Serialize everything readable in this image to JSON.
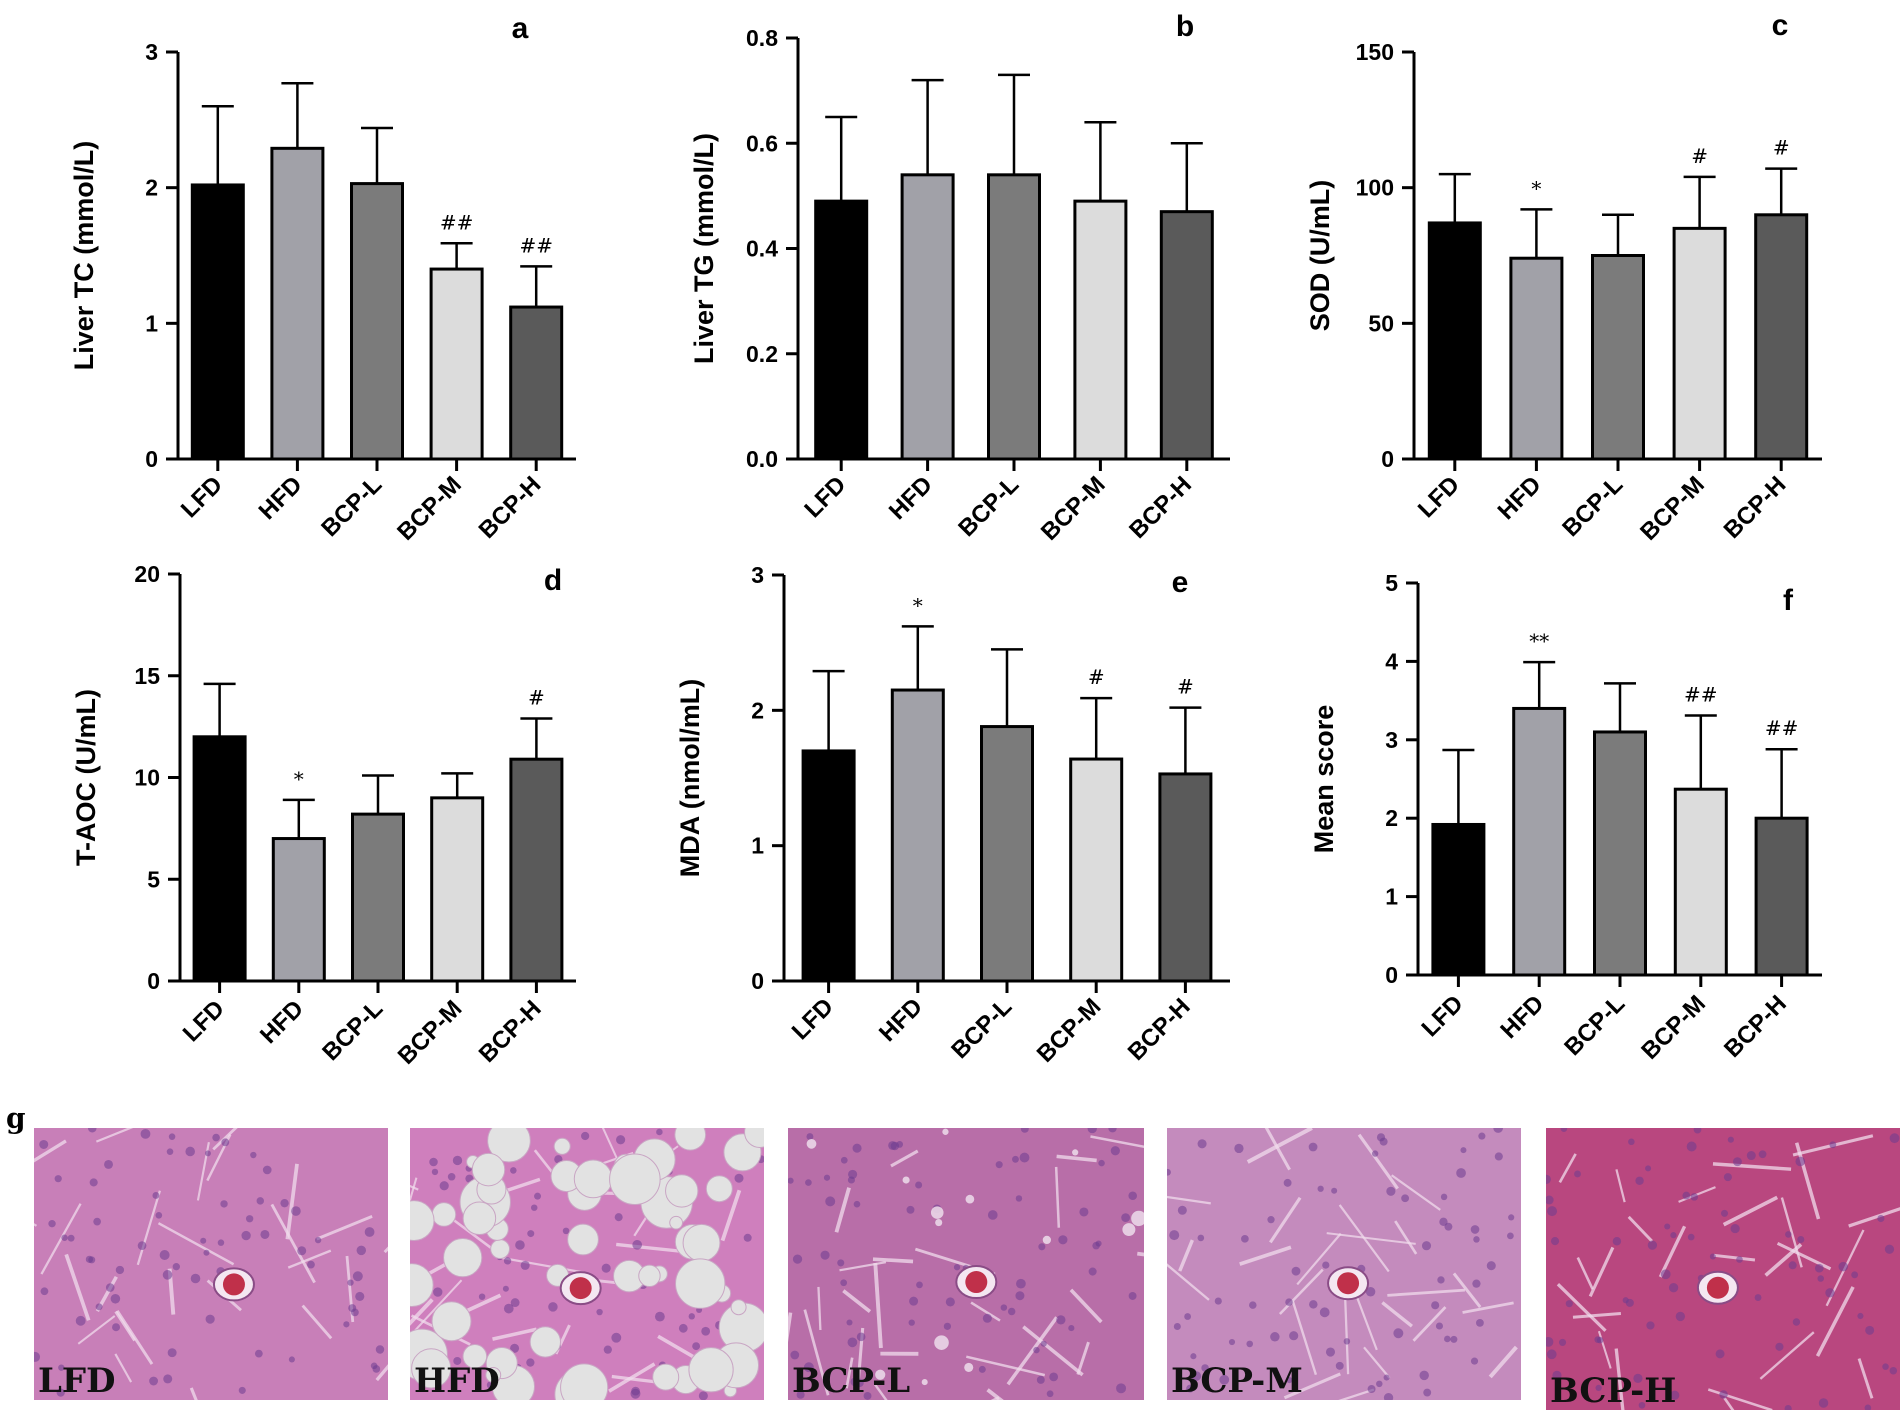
{
  "chart_data": [
    {
      "panel": "a",
      "type": "bar",
      "categories": [
        "LFD",
        "HFD",
        "BCP-L",
        "BCP-M",
        "BCP-H"
      ],
      "values": [
        2.02,
        2.29,
        2.03,
        1.4,
        1.12
      ],
      "errors": [
        0.58,
        0.48,
        0.41,
        0.19,
        0.3
      ],
      "annotations": [
        "",
        "",
        "",
        "##",
        "##"
      ],
      "ylabel": "Liver TC (mmol/L)",
      "ylim": [
        0,
        3
      ],
      "yticks": [
        "0",
        "1",
        "2",
        "3"
      ]
    },
    {
      "panel": "b",
      "type": "bar",
      "categories": [
        "LFD",
        "HFD",
        "BCP-L",
        "BCP-M",
        "BCP-H"
      ],
      "values": [
        0.49,
        0.54,
        0.54,
        0.49,
        0.47
      ],
      "errors": [
        0.16,
        0.18,
        0.19,
        0.15,
        0.13
      ],
      "annotations": [
        "",
        "",
        "",
        "",
        ""
      ],
      "ylabel": "Liver TG (mmol/L)",
      "ylim": [
        0,
        0.8
      ],
      "yticks": [
        "0.0",
        "0.2",
        "0.4",
        "0.6",
        "0.8"
      ]
    },
    {
      "panel": "c",
      "type": "bar",
      "categories": [
        "LFD",
        "HFD",
        "BCP-L",
        "BCP-M",
        "BCP-H"
      ],
      "values": [
        87,
        74,
        75,
        85,
        90
      ],
      "errors": [
        18,
        18,
        15,
        19,
        17
      ],
      "annotations": [
        "",
        "*",
        "",
        "#",
        "#"
      ],
      "ylabel": "SOD (U/mL)",
      "ylim": [
        0,
        150
      ],
      "yticks": [
        "0",
        "50",
        "100",
        "150"
      ]
    },
    {
      "panel": "d",
      "type": "bar",
      "categories": [
        "LFD",
        "HFD",
        "BCP-L",
        "BCP-M",
        "BCP-H"
      ],
      "values": [
        12.0,
        7.0,
        8.2,
        9.0,
        10.9
      ],
      "errors": [
        2.6,
        1.9,
        1.9,
        1.2,
        2.0
      ],
      "annotations": [
        "",
        "*",
        "",
        "",
        "#"
      ],
      "ylabel": "T-AOC (U/mL)",
      "ylim": [
        0,
        20
      ],
      "yticks": [
        "0",
        "5",
        "10",
        "15",
        "20"
      ]
    },
    {
      "panel": "e",
      "type": "bar",
      "categories": [
        "LFD",
        "HFD",
        "BCP-L",
        "BCP-M",
        "BCP-H"
      ],
      "values": [
        1.7,
        2.15,
        1.88,
        1.64,
        1.53
      ],
      "errors": [
        0.59,
        0.47,
        0.57,
        0.45,
        0.49
      ],
      "annotations": [
        "",
        "*",
        "",
        "#",
        "#"
      ],
      "ylabel": "MDA (nmol/mL)",
      "ylim": [
        0,
        3
      ],
      "yticks": [
        "0",
        "1",
        "2",
        "3"
      ]
    },
    {
      "panel": "f",
      "type": "bar",
      "categories": [
        "LFD",
        "HFD",
        "BCP-L",
        "BCP-M",
        "BCP-H"
      ],
      "values": [
        1.92,
        3.4,
        3.1,
        2.37,
        2.0
      ],
      "errors": [
        0.95,
        0.59,
        0.62,
        0.94,
        0.88
      ],
      "annotations": [
        "",
        "**",
        "",
        "##",
        "##"
      ],
      "ylabel": "Mean score",
      "ylim": [
        0,
        5
      ],
      "yticks": [
        "0",
        "1",
        "2",
        "3",
        "4",
        "5"
      ]
    }
  ],
  "colors": {
    "LFD": "#000000",
    "HFD": "#a1a1a8",
    "BCP-L": "#7b7b7b",
    "BCP-M": "#dcdcdc",
    "BCP-H": "#5a5a5a"
  },
  "histology": {
    "panel_label": "g",
    "images": [
      {
        "label": "LFD",
        "style": "normal",
        "base": "#c87fb8",
        "icon": "liver-tissue-normal"
      },
      {
        "label": "HFD",
        "style": "steatosis",
        "base": "#cf7fbd",
        "icon": "liver-tissue-fatty"
      },
      {
        "label": "BCP-L",
        "style": "mild",
        "base": "#b86ea8",
        "icon": "liver-tissue-mild"
      },
      {
        "label": "BCP-M",
        "style": "normal",
        "base": "#c48bbd",
        "icon": "liver-tissue-normal"
      },
      {
        "label": "BCP-H",
        "style": "normal",
        "base": "#b9477f",
        "icon": "liver-tissue-normal"
      }
    ]
  }
}
